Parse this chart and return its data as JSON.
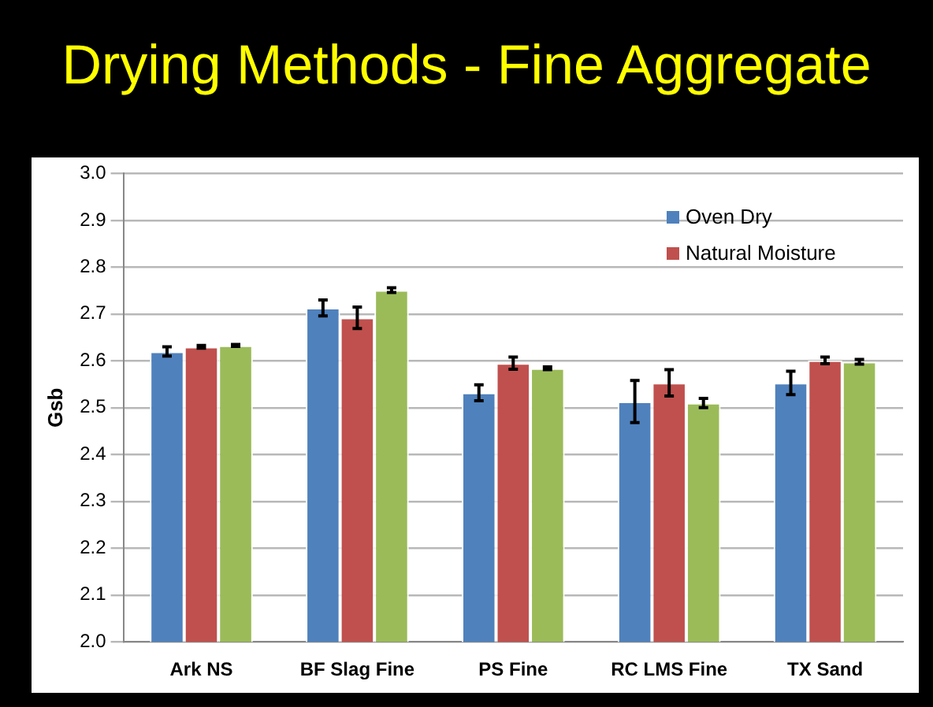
{
  "chart_data": {
    "type": "bar",
    "title": "Drying Methods - Fine Aggregate",
    "ylabel": "Gsb",
    "categories": [
      "Ark NS",
      "BF Slag Fine",
      "PS Fine",
      "RC LMS Fine",
      "TX Sand"
    ],
    "series": [
      {
        "name": "Oven Dry",
        "color": "#4f81bd",
        "values": [
          2.62,
          2.713,
          2.532,
          2.513,
          2.553
        ],
        "errors": [
          0.01,
          0.017,
          0.017,
          0.045,
          0.025
        ]
      },
      {
        "name": "Natural Moisture",
        "color": "#c0504d",
        "values": [
          2.63,
          2.692,
          2.595,
          2.553,
          2.601
        ],
        "errors": [
          0.003,
          0.023,
          0.013,
          0.028,
          0.007
        ]
      },
      {
        "color": "#9bbb59",
        "values": [
          2.633,
          2.751,
          2.584,
          2.51,
          2.598
        ],
        "errors": [
          0.002,
          0.005,
          0.003,
          0.01,
          0.005
        ]
      }
    ],
    "ylim": [
      2.0,
      3.0
    ],
    "yticks": [
      {
        "value": 2,
        "label": "2.0"
      },
      2.1,
      2.2,
      2.3,
      2.4,
      2.5,
      2.6,
      2.7,
      2.8,
      2.9,
      {
        "value": 3,
        "label": "3.0"
      }
    ],
    "grid": "y",
    "legend": "top right"
  }
}
